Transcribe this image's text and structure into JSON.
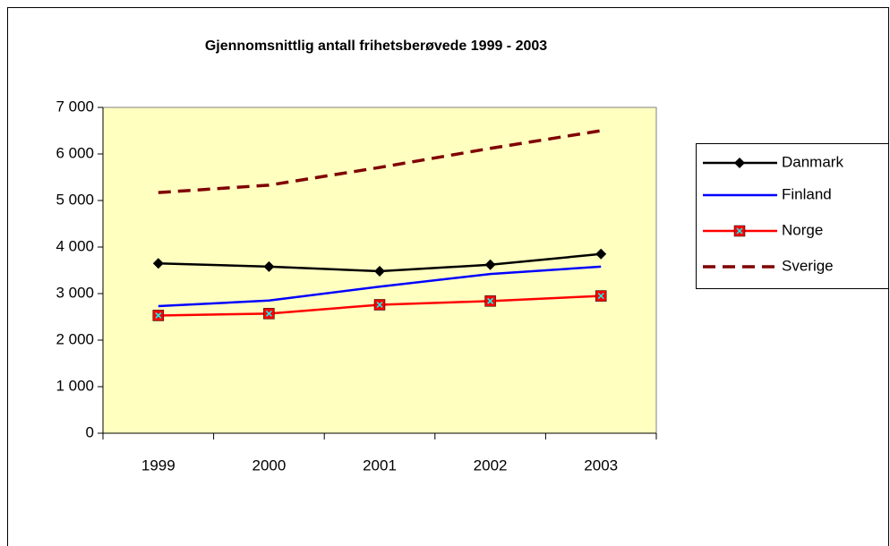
{
  "chart_data": {
    "type": "line",
    "title": "Gjennomsnittlig antall frihetsberøvede 1999 - 2003",
    "categories": [
      "1999",
      "2000",
      "2001",
      "2002",
      "2003"
    ],
    "series": [
      {
        "name": "Danmark",
        "color": "#000000",
        "marker": "diamond",
        "values": [
          3650,
          3580,
          3480,
          3620,
          3850
        ]
      },
      {
        "name": "Finland",
        "color": "#0000ff",
        "marker": "none",
        "values": [
          2730,
          2850,
          3150,
          3420,
          3580
        ]
      },
      {
        "name": "Norge",
        "color": "#ff0000",
        "marker": "square",
        "values": [
          2530,
          2570,
          2760,
          2840,
          2950
        ]
      },
      {
        "name": "Sverige",
        "color": "#800000",
        "marker": "none",
        "dashed": true,
        "values": [
          5170,
          5330,
          5710,
          6120,
          6500
        ]
      }
    ],
    "ylim": [
      0,
      7000
    ],
    "yticks": [
      {
        "value": 0,
        "label": "0"
      },
      {
        "value": 1000,
        "label": "1 000"
      },
      {
        "value": 2000,
        "label": "2 000"
      },
      {
        "value": 3000,
        "label": "3 000"
      },
      {
        "value": 4000,
        "label": "4 000"
      },
      {
        "value": 5000,
        "label": "5 000"
      },
      {
        "value": 6000,
        "label": "6 000"
      },
      {
        "value": 7000,
        "label": "7 000"
      }
    ],
    "plot_background": "#ffffc0",
    "legend": "right"
  }
}
